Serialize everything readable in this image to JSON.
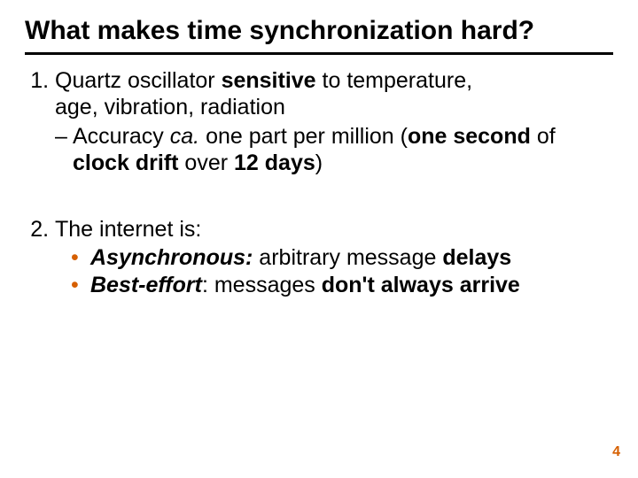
{
  "colors": {
    "rule": "#000000",
    "bullet": "#d65f00",
    "pagenum": "#d65f00",
    "text": "#000000",
    "background": "#ffffff"
  },
  "title": "What makes time synchronization hard?",
  "item1": {
    "line1_pre": "Quartz oscillator ",
    "line1_bold": "sensitive",
    "line1_post": " to temperature,",
    "line2": "age, vibration, radiation",
    "sub_dash": "–",
    "sub_pre": "Accuracy ",
    "sub_ca": "ca.",
    "sub_mid": " one part per million (",
    "sub_b1": "one second",
    "sub_mid2": " of ",
    "sub_b2": "clock drift",
    "sub_mid3": " over ",
    "sub_b3": "12 days",
    "sub_post": ")"
  },
  "item2": {
    "lead": "The internet is:",
    "bullet_char": "•",
    "a_label": "Asynchronous:",
    "a_mid": " arbitrary message ",
    "a_bold": "delays",
    "b_label": "Best-effort",
    "b_mid1": ": messages ",
    "b_bold": "don't always arrive"
  },
  "page_number": "4"
}
